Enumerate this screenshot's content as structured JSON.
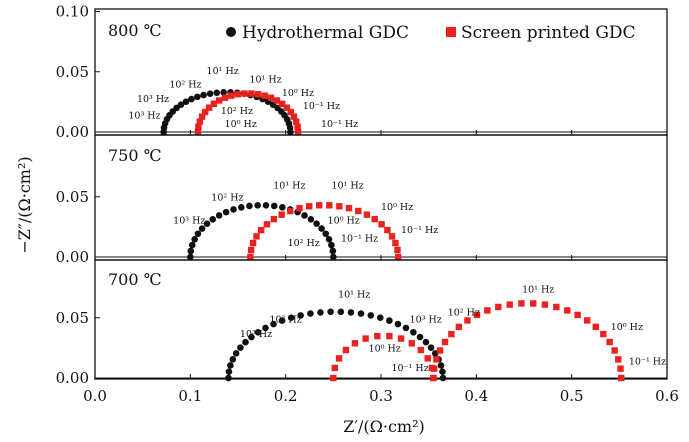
{
  "chart_data": {
    "type": "scatter",
    "xlabel": "Z′/(Ω·cm²)",
    "ylabel": "−Z″/(Ω·cm²)",
    "xlim": [
      0.0,
      0.6
    ],
    "xticks": [
      "0.0",
      "0.1",
      "0.2",
      "0.3",
      "0.4",
      "0.5",
      "0.6"
    ],
    "legend": [
      {
        "name": "Hydrothermal GDC",
        "color": "#111111",
        "marker": "circle"
      },
      {
        "name": "Screen printed GDC",
        "color": "#e8231f",
        "marker": "square"
      }
    ],
    "panels": [
      {
        "title": "800 ℃",
        "ylim": [
          0,
          0.1
        ],
        "yticks": [
          "0.00",
          "0.05",
          "0.10"
        ],
        "series": [
          {
            "name": "Hydrothermal GDC",
            "arcs": [
              {
                "x0": 0.072,
                "x1": 0.205,
                "peak": 0.033,
                "n": 30
              }
            ]
          },
          {
            "name": "Screen printed GDC",
            "arcs": [
              {
                "x0": 0.108,
                "x1": 0.213,
                "peak": 0.032,
                "n": 24
              }
            ]
          }
        ],
        "annotations": [
          {
            "text": "10³ Hz",
            "x": 0.035,
            "y": 0.011
          },
          {
            "text": "10³ Hz",
            "x": 0.044,
            "y": 0.025
          },
          {
            "text": "10² Hz",
            "x": 0.078,
            "y": 0.037
          },
          {
            "text": "10¹ Hz",
            "x": 0.117,
            "y": 0.048
          },
          {
            "text": "10¹ Hz",
            "x": 0.162,
            "y": 0.041
          },
          {
            "text": "10⁰ Hz",
            "x": 0.196,
            "y": 0.03
          },
          {
            "text": "10⁻¹ Hz",
            "x": 0.218,
            "y": 0.019
          },
          {
            "text": "10² Hz",
            "x": 0.132,
            "y": 0.015
          },
          {
            "text": "10⁰ Hz",
            "x": 0.136,
            "y": 0.004
          },
          {
            "text": "10⁻¹ Hz",
            "x": 0.237,
            "y": 0.004
          }
        ]
      },
      {
        "title": "750 ℃",
        "ylim": [
          0,
          0.1
        ],
        "yticks": [
          "0.00",
          "0.05"
        ],
        "series": [
          {
            "name": "Hydrothermal GDC",
            "arcs": [
              {
                "x0": 0.1,
                "x1": 0.25,
                "peak": 0.043,
                "n": 28
              }
            ]
          },
          {
            "name": "Screen printed GDC",
            "arcs": [
              {
                "x0": 0.163,
                "x1": 0.318,
                "peak": 0.043,
                "n": 24
              }
            ]
          }
        ],
        "annotations": [
          {
            "text": "10³ Hz",
            "x": 0.082,
            "y": 0.028
          },
          {
            "text": "10² Hz",
            "x": 0.122,
            "y": 0.047
          },
          {
            "text": "10¹ Hz",
            "x": 0.187,
            "y": 0.057
          },
          {
            "text": "10¹ Hz",
            "x": 0.248,
            "y": 0.057
          },
          {
            "text": "10⁰ Hz",
            "x": 0.3,
            "y": 0.039
          },
          {
            "text": "10⁰ Hz",
            "x": 0.244,
            "y": 0.028
          },
          {
            "text": "10⁻¹ Hz",
            "x": 0.321,
            "y": 0.02
          },
          {
            "text": "10² Hz",
            "x": 0.202,
            "y": 0.009
          },
          {
            "text": "10⁻¹ Hz",
            "x": 0.258,
            "y": 0.013
          }
        ]
      },
      {
        "title": "700 ℃",
        "ylim": [
          0,
          0.1
        ],
        "yticks": [
          "0.00",
          "0.05"
        ],
        "series": [
          {
            "name": "Hydrothermal GDC",
            "arcs": [
              {
                "x0": 0.14,
                "x1": 0.365,
                "peak": 0.055,
                "n": 34
              }
            ]
          },
          {
            "name": "Screen printed GDC",
            "arcs": [
              {
                "x0": 0.25,
                "x1": 0.355,
                "peak": 0.035,
                "n": 14
              },
              {
                "x0": 0.355,
                "x1": 0.552,
                "peak": 0.062,
                "n": 26
              }
            ]
          }
        ],
        "annotations": [
          {
            "text": "10¹ Hz",
            "x": 0.255,
            "y": 0.067
          },
          {
            "text": "10³ Hz",
            "x": 0.152,
            "y": 0.034
          },
          {
            "text": "10² Hz",
            "x": 0.183,
            "y": 0.046
          },
          {
            "text": "10⁰ Hz",
            "x": 0.287,
            "y": 0.022
          },
          {
            "text": "10⁻¹ Hz",
            "x": 0.311,
            "y": 0.006
          },
          {
            "text": "10³ Hz",
            "x": 0.33,
            "y": 0.046
          },
          {
            "text": "10² Hz",
            "x": 0.37,
            "y": 0.052
          },
          {
            "text": "10¹ Hz",
            "x": 0.448,
            "y": 0.071
          },
          {
            "text": "10⁰ Hz",
            "x": 0.541,
            "y": 0.04
          },
          {
            "text": "10⁻¹ Hz",
            "x": 0.56,
            "y": 0.011
          }
        ]
      }
    ]
  }
}
